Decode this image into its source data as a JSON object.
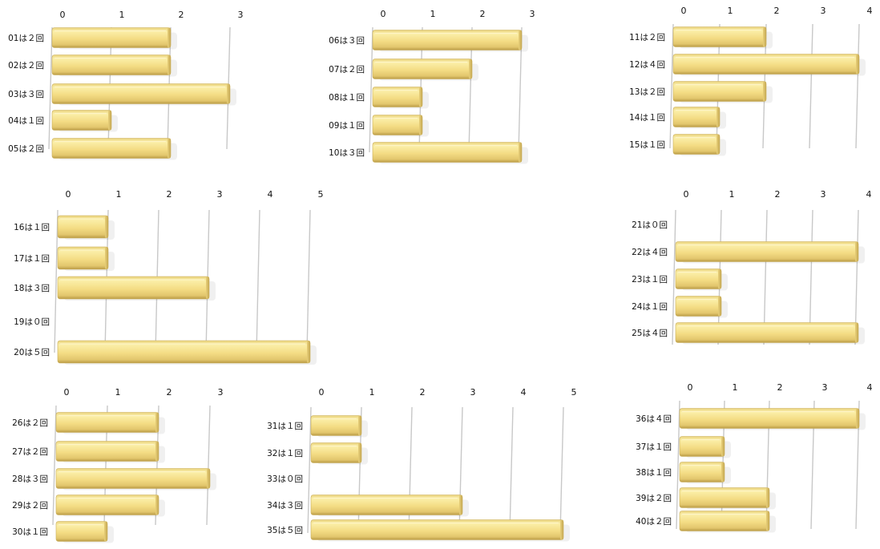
{
  "chart_data": [
    {
      "type": "bar",
      "orientation": "horizontal",
      "categories": [
        "01は２回",
        "02は２回",
        "03は３回",
        "04は１回",
        "05は２回"
      ],
      "values": [
        2,
        2,
        3,
        1,
        2
      ],
      "xticks": [
        "0",
        "1",
        "2",
        "3"
      ],
      "xlim": [
        0,
        3
      ],
      "grid": true,
      "color": "#F3DE85"
    },
    {
      "type": "bar",
      "orientation": "horizontal",
      "categories": [
        "06は３回",
        "07は２回",
        "08は１回",
        "09は１回",
        "10は３回"
      ],
      "values": [
        3,
        2,
        1,
        1,
        3
      ],
      "xticks": [
        "0",
        "1",
        "2",
        "3"
      ],
      "xlim": [
        0,
        3
      ],
      "grid": true,
      "color": "#F3DE85"
    },
    {
      "type": "bar",
      "orientation": "horizontal",
      "categories": [
        "11は２回",
        "12は４回",
        "13は２回",
        "14は１回",
        "15は１回"
      ],
      "values": [
        2,
        4,
        2,
        1,
        1
      ],
      "xticks": [
        "0",
        "1",
        "2",
        "3",
        "4"
      ],
      "xlim": [
        0,
        4
      ],
      "grid": true,
      "color": "#F3DE85"
    },
    {
      "type": "bar",
      "orientation": "horizontal",
      "categories": [
        "16は１回",
        "17は１回",
        "18は３回",
        "19は０回",
        "20は５回"
      ],
      "values": [
        1,
        1,
        3,
        0,
        5
      ],
      "xticks": [
        "0",
        "1",
        "2",
        "3",
        "4",
        "5"
      ],
      "xlim": [
        0,
        5
      ],
      "grid": true,
      "color": "#F3DE85"
    },
    {
      "type": "bar",
      "orientation": "horizontal",
      "categories": [
        "21は０回",
        "22は４回",
        "23は１回",
        "24は１回",
        "25は４回"
      ],
      "values": [
        0,
        4,
        1,
        1,
        4
      ],
      "xticks": [
        "0",
        "1",
        "2",
        "3",
        "4"
      ],
      "xlim": [
        0,
        4
      ],
      "grid": true,
      "color": "#F3DE85"
    },
    {
      "type": "bar",
      "orientation": "horizontal",
      "categories": [
        "26は２回",
        "27は２回",
        "28は３回",
        "29は２回",
        "30は１回"
      ],
      "values": [
        2,
        2,
        3,
        2,
        1
      ],
      "xticks": [
        "0",
        "1",
        "2",
        "3"
      ],
      "xlim": [
        0,
        3
      ],
      "grid": true,
      "color": "#F3DE85"
    },
    {
      "type": "bar",
      "orientation": "horizontal",
      "categories": [
        "31は１回",
        "32は１回",
        "33は０回",
        "34は３回",
        "35は５回"
      ],
      "values": [
        1,
        1,
        0,
        3,
        5
      ],
      "xticks": [
        "0",
        "1",
        "2",
        "3",
        "4",
        "5"
      ],
      "xlim": [
        0,
        5
      ],
      "grid": true,
      "color": "#F3DE85"
    },
    {
      "type": "bar",
      "orientation": "horizontal",
      "categories": [
        "36は４回",
        "37は１回",
        "38は１回",
        "39は２回",
        "40は２回"
      ],
      "values": [
        4,
        1,
        1,
        2,
        2
      ],
      "xticks": [
        "0",
        "1",
        "2",
        "3",
        "4"
      ],
      "xlim": [
        0,
        4
      ],
      "grid": true,
      "color": "#F3DE85"
    }
  ]
}
